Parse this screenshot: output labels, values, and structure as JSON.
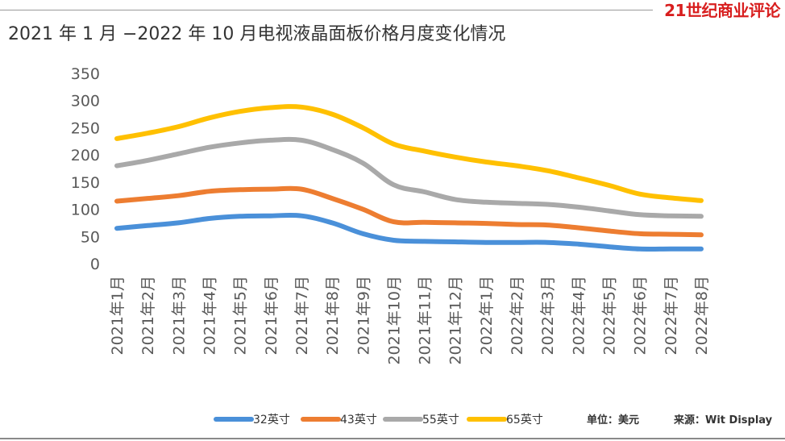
{
  "brand": {
    "name": "21世纪商业评论",
    "color": "#d81e1e"
  },
  "title": "2021 年 1 月 −2022 年 10 月电视液晶面板价格月度变化情况",
  "footer": {
    "unit": "单位：美元",
    "source": "来源：Wit Display"
  },
  "chart_data": {
    "type": "line",
    "title": "2021 年 1 月 −2022 年 10 月电视液晶面板价格月度变化情况",
    "categories": [
      "2021年1月",
      "2021年2月",
      "2021年3月",
      "2021年4月",
      "2021年5月",
      "2021年6月",
      "2021年7月",
      "2021年8月",
      "2021年9月",
      "2021年10月",
      "2021年11月",
      "2021年12月",
      "2022年1月",
      "2022年2月",
      "2022年3月",
      "2022年4月",
      "2022年5月",
      "2022年6月",
      "2022年7月",
      "2022年8月"
    ],
    "ylim": [
      0,
      350
    ],
    "yticks": [
      0,
      50,
      100,
      150,
      200,
      250,
      300,
      350
    ],
    "grid": false,
    "legend_position": "bottom",
    "series": [
      {
        "name": "32英寸",
        "color": "#4a90d9",
        "values": [
          65,
          70,
          75,
          83,
          87,
          88,
          88,
          75,
          55,
          43,
          41,
          40,
          39,
          39,
          39,
          36,
          31,
          27,
          27,
          27
        ]
      },
      {
        "name": "43英寸",
        "color": "#ed7d31",
        "values": [
          115,
          120,
          125,
          133,
          136,
          137,
          137,
          120,
          100,
          77,
          76,
          75,
          74,
          72,
          71,
          66,
          60,
          55,
          54,
          53
        ]
      },
      {
        "name": "55英寸",
        "color": "#a9a9a9",
        "values": [
          180,
          190,
          202,
          214,
          222,
          227,
          227,
          210,
          185,
          145,
          132,
          118,
          113,
          111,
          109,
          104,
          97,
          90,
          88,
          87
        ]
      },
      {
        "name": "65英寸",
        "color": "#ffc000",
        "values": [
          230,
          240,
          252,
          268,
          280,
          287,
          288,
          275,
          250,
          220,
          207,
          196,
          187,
          180,
          171,
          158,
          144,
          128,
          121,
          116
        ]
      }
    ]
  }
}
